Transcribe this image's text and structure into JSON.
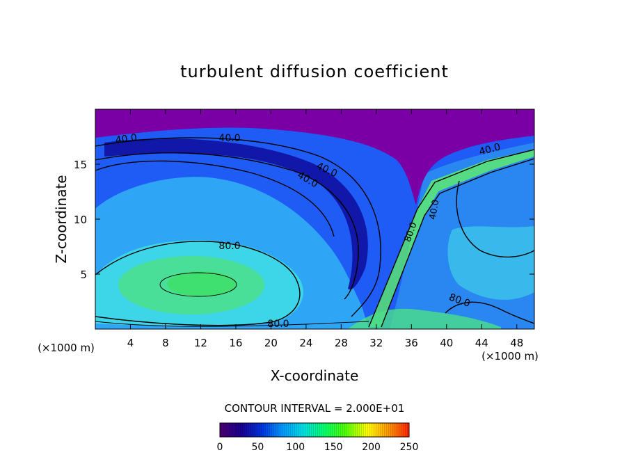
{
  "chart_data": {
    "type": "heatmap",
    "title": "turbulent diffusion coefficient",
    "xlabel": "X-coordinate",
    "ylabel": "Z-coordinate",
    "x_unit": "(×1000 m)",
    "x_unit_right": "(×1000 m)",
    "xlim": [
      0,
      50
    ],
    "ylim": [
      0,
      20
    ],
    "x_ticks": [
      4,
      8,
      12,
      16,
      20,
      24,
      28,
      32,
      36,
      40,
      44,
      48
    ],
    "x_tick_labels": [
      "4",
      "8",
      "12",
      "16",
      "20",
      "24",
      "28",
      "32",
      "36",
      "40",
      "44",
      "48"
    ],
    "y_ticks": [
      5,
      10,
      15
    ],
    "y_tick_labels": [
      "5",
      "10",
      "15"
    ],
    "contour_interval_text": "CONTOUR INTERVAL = 2.000E+01",
    "contour_labels": [
      "40.0",
      "40.0",
      "40.0",
      "40.0",
      "40.0",
      "40.0",
      "80.0",
      "80.0",
      "80.0",
      "80.0"
    ],
    "colorbar": {
      "min": 0,
      "max": 250,
      "ticks": [
        0,
        50,
        100,
        150,
        200,
        250
      ],
      "tick_labels": [
        "0",
        "50",
        "100",
        "150",
        "200",
        "250"
      ],
      "colors": [
        "#4a0070",
        "#1a0090",
        "#0033dd",
        "#0099ff",
        "#00e0e0",
        "#00ff66",
        "#55ff00",
        "#ffff00",
        "#ff9900",
        "#ff2200"
      ]
    },
    "field_colors": {
      "top_layer": "#7a00a6",
      "outer": "#1f5cf5",
      "band": "#2ea6f5",
      "inner": "#3dd6e8",
      "core": "#4be08a",
      "dark": "#1010a0",
      "bright": "#66ff55"
    }
  }
}
